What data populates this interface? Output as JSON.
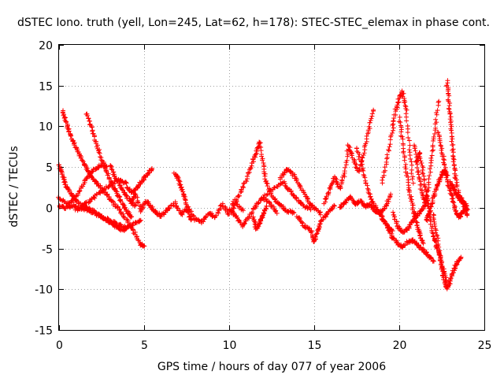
{
  "chart_data": {
    "type": "scatter",
    "title": "dSTEC Iono. truth (yell, Lon=245, Lat=62, h=178): STEC-STEC_elemax in phase cont.",
    "xlabel": "GPS time / hours of day 077 of year 2006",
    "ylabel": "dSTEC  / TECUs",
    "xlim": [
      0,
      25
    ],
    "ylim": [
      -15,
      20
    ],
    "x_ticks": [
      "0",
      "5",
      "10",
      "15",
      "20",
      "25"
    ],
    "y_ticks": [
      "-15",
      "-10",
      "-5",
      "0",
      "5",
      "10",
      "15",
      "20"
    ],
    "grid": true,
    "marker": "+",
    "series_color": "#ff0000",
    "series": [
      {
        "x": [
          0.0,
          0.2,
          0.4,
          0.7,
          1.0,
          1.4,
          1.8,
          2.2,
          2.6,
          3.0,
          3.4,
          3.8,
          4.1
        ],
        "y": [
          5.3,
          4.0,
          2.8,
          1.7,
          0.9,
          0.3,
          -0.2,
          -0.6,
          -1.2,
          -1.8,
          -2.4,
          -2.8,
          -2.3
        ]
      },
      {
        "x": [
          0.2,
          0.4,
          0.6,
          0.9,
          1.2,
          1.5,
          1.8,
          2.1,
          2.4,
          2.8,
          3.2,
          3.6,
          4.0,
          4.4,
          4.8,
          5.0
        ],
        "y": [
          11.8,
          10.7,
          9.3,
          7.8,
          6.5,
          5.3,
          4.2,
          3.3,
          2.6,
          1.6,
          0.6,
          -0.4,
          -1.6,
          -3.0,
          -4.5,
          -4.8
        ]
      },
      {
        "x": [
          0.0,
          0.4,
          0.8,
          1.2,
          1.6,
          2.0,
          2.4,
          2.8
        ],
        "y": [
          1.2,
          0.6,
          0.8,
          2.0,
          3.5,
          4.6,
          5.2,
          5.0
        ]
      },
      {
        "x": [
          0.0,
          0.4,
          0.8,
          1.2,
          1.6,
          2.0,
          2.4,
          2.8,
          3.2,
          3.6,
          4.0,
          4.4,
          4.8
        ],
        "y": [
          0.2,
          0.0,
          0.2,
          0.0,
          -0.2,
          -0.6,
          -1.0,
          -1.4,
          -1.8,
          -2.2,
          -2.4,
          -2.0,
          -1.5
        ]
      },
      {
        "x": [
          1.6,
          1.9,
          2.2,
          2.5,
          2.8,
          3.1,
          3.4,
          3.7,
          4.0,
          4.3
        ],
        "y": [
          11.6,
          9.8,
          7.8,
          6.0,
          4.4,
          2.8,
          1.8,
          0.6,
          -0.4,
          -1.2
        ]
      },
      {
        "x": [
          1.0,
          1.5,
          2.0,
          2.5,
          3.0,
          3.5,
          4.0
        ],
        "y": [
          -0.4,
          0.4,
          1.2,
          2.0,
          2.8,
          3.4,
          3.0
        ]
      },
      {
        "x": [
          3.0,
          3.3,
          3.6,
          3.9,
          4.2,
          4.5
        ],
        "y": [
          5.2,
          3.8,
          2.6,
          1.6,
          0.8,
          0.2
        ]
      },
      {
        "x": [
          4.0,
          4.3,
          4.6,
          4.9,
          5.2,
          5.5
        ],
        "y": [
          2.6,
          1.8,
          2.4,
          3.4,
          4.2,
          4.8
        ]
      },
      {
        "x": [
          4.2,
          4.5,
          4.8,
          5.1,
          5.4,
          5.7,
          6.0,
          6.4,
          6.8,
          7.2,
          7.6,
          8.0,
          8.4,
          8.8,
          9.2,
          9.6,
          10.0,
          10.4,
          10.8
        ],
        "y": [
          0.6,
          1.8,
          -0.4,
          0.8,
          0.2,
          -0.6,
          -1.0,
          -0.2,
          0.6,
          -0.8,
          0.0,
          -1.4,
          -1.8,
          -0.6,
          -1.2,
          0.4,
          -0.8,
          0.6,
          -0.4
        ]
      },
      {
        "x": [
          6.8,
          7.0,
          7.2,
          7.4,
          7.6,
          7.8
        ],
        "y": [
          4.2,
          3.6,
          2.4,
          1.0,
          -0.6,
          -1.6
        ]
      },
      {
        "x": [
          10.2,
          10.6,
          11.0,
          11.3,
          11.6,
          11.8,
          12.0,
          12.2,
          12.6,
          13.0,
          13.4,
          13.8
        ],
        "y": [
          0.4,
          1.6,
          3.4,
          5.2,
          6.8,
          8.2,
          5.2,
          3.0,
          1.2,
          0.4,
          -0.4,
          -0.6
        ]
      },
      {
        "x": [
          10.0,
          10.4,
          10.8,
          11.2,
          11.6,
          12.0,
          12.4,
          12.8
        ],
        "y": [
          -0.2,
          -1.0,
          -2.2,
          -1.0,
          0.4,
          1.2,
          0.6,
          -0.6
        ]
      },
      {
        "x": [
          12.0,
          12.6,
          13.2,
          13.6,
          14.0,
          14.4,
          14.8
        ],
        "y": [
          1.2,
          2.4,
          3.2,
          2.0,
          1.0,
          0.2,
          -0.2
        ]
      },
      {
        "x": [
          13.0,
          13.4,
          13.8,
          14.2,
          14.6,
          15.0,
          15.4
        ],
        "y": [
          3.6,
          4.8,
          4.0,
          2.6,
          1.0,
          0.0,
          -0.8
        ]
      },
      {
        "x": [
          11.4,
          11.6,
          11.8,
          12.0,
          12.2
        ],
        "y": [
          -1.2,
          -2.6,
          -1.8,
          -0.8,
          0.2
        ]
      },
      {
        "x": [
          14.0,
          14.4,
          14.8,
          15.0,
          15.2,
          15.4,
          15.8,
          16.2
        ],
        "y": [
          -1.0,
          -2.2,
          -2.8,
          -4.2,
          -3.0,
          -1.6,
          -0.6,
          0.2
        ]
      },
      {
        "x": [
          15.6,
          15.9,
          16.2,
          16.5,
          16.8,
          17.0,
          17.3,
          17.6,
          17.9,
          18.2,
          18.5
        ],
        "y": [
          0.6,
          2.2,
          3.8,
          2.4,
          4.2,
          7.6,
          6.0,
          4.4,
          6.8,
          9.6,
          12.0
        ]
      },
      {
        "x": [
          16.5,
          16.8,
          17.1,
          17.4,
          17.7,
          18.0,
          18.3,
          18.6,
          18.9,
          19.2,
          19.5
        ],
        "y": [
          0.0,
          0.6,
          1.4,
          0.4,
          0.8,
          0.2,
          0.4,
          -0.4,
          -0.6,
          0.2,
          1.6
        ]
      },
      {
        "x": [
          17.5,
          17.8,
          18.1,
          18.4,
          18.7,
          19.0,
          19.3,
          19.6
        ],
        "y": [
          7.4,
          5.2,
          2.6,
          0.8,
          -0.2,
          -1.2,
          -2.2,
          -2.8
        ]
      },
      {
        "x": [
          19.0,
          19.3,
          19.6,
          19.8,
          20.0,
          20.2,
          20.4,
          20.6,
          20.8
        ],
        "y": [
          3.0,
          6.2,
          9.6,
          12.0,
          13.6,
          14.2,
          12.0,
          7.2,
          3.0
        ]
      },
      {
        "x": [
          19.0,
          19.3,
          19.6,
          19.9,
          20.2,
          20.5,
          20.8,
          21.1,
          21.4,
          21.7,
          22.0
        ],
        "y": [
          -1.2,
          -2.4,
          -3.6,
          -4.4,
          -4.8,
          -4.2,
          -4.0,
          -4.6,
          -5.2,
          -5.8,
          -6.6
        ]
      },
      {
        "x": [
          19.6,
          19.9,
          20.2,
          20.5,
          20.8,
          21.1,
          21.4,
          21.7
        ],
        "y": [
          -0.6,
          -2.2,
          -3.0,
          -2.6,
          -1.6,
          -0.8,
          0.0,
          1.0
        ]
      },
      {
        "x": [
          20.0,
          20.2,
          20.4,
          20.6,
          20.8,
          21.0,
          21.2,
          21.4
        ],
        "y": [
          11.0,
          8.0,
          4.8,
          2.0,
          0.0,
          -1.8,
          -3.2,
          -4.4
        ]
      },
      {
        "x": [
          20.9,
          21.1,
          21.3,
          21.5,
          21.7,
          21.9,
          22.1,
          22.3
        ],
        "y": [
          7.8,
          4.6,
          2.2,
          0.6,
          2.4,
          6.2,
          9.4,
          13.2
        ]
      },
      {
        "x": [
          21.0,
          21.2,
          21.4,
          21.6,
          21.8,
          22.0,
          22.2,
          22.4,
          22.6,
          22.8
        ],
        "y": [
          5.6,
          6.8,
          4.4,
          1.6,
          -1.0,
          -3.4,
          -4.8,
          -6.0,
          -7.8,
          -9.2
        ]
      },
      {
        "x": [
          22.0,
          22.2,
          22.4,
          22.6,
          22.8,
          23.0,
          23.2,
          23.4,
          23.6
        ],
        "y": [
          -0.8,
          -3.2,
          -6.0,
          -8.4,
          -10.0,
          -9.0,
          -7.6,
          -6.8,
          -6.0
        ]
      },
      {
        "x": [
          22.3,
          22.5,
          22.7,
          22.9,
          23.1,
          23.3,
          23.5,
          23.7,
          23.9
        ],
        "y": [
          9.4,
          7.0,
          5.0,
          2.6,
          1.4,
          -0.4,
          -1.2,
          -0.6,
          0.0
        ]
      },
      {
        "x": [
          22.8,
          22.9,
          23.0,
          23.1,
          23.2,
          23.3,
          23.5,
          23.7,
          23.9,
          24.0
        ],
        "y": [
          15.6,
          13.4,
          11.2,
          8.6,
          6.0,
          3.8,
          1.6,
          0.8,
          0.4,
          -0.4
        ]
      },
      {
        "x": [
          23.0,
          23.2,
          23.4,
          23.6,
          23.8,
          24.0
        ],
        "y": [
          3.2,
          2.4,
          1.6,
          1.0,
          0.4,
          -1.0
        ]
      },
      {
        "x": [
          21.6,
          21.8,
          22.0,
          22.2,
          22.4,
          22.6,
          22.8
        ],
        "y": [
          -1.6,
          -0.4,
          1.2,
          2.6,
          3.6,
          4.6,
          4.0
        ]
      }
    ]
  }
}
